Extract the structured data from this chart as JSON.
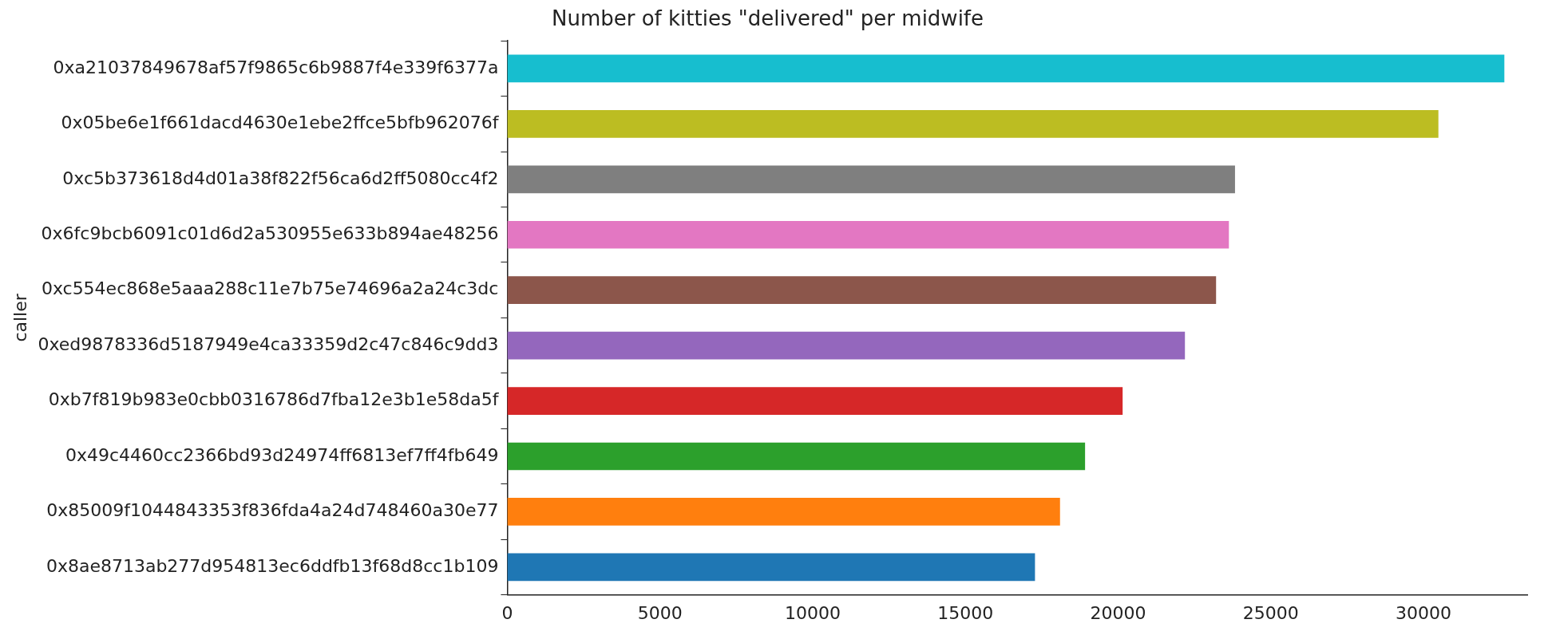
{
  "chart_data": {
    "type": "bar",
    "orientation": "horizontal",
    "title": "Number of kitties \"delivered\" per midwife",
    "ylabel": "caller",
    "categories": [
      "0xa21037849678af57f9865c6b9887f4e339f6377a",
      "0x05be6e1f661dacd4630e1ebe2ffce5bfb962076f",
      "0xc5b373618d4d01a38f822f56ca6d2ff5080cc4f2",
      "0x6fc9bcb6091c01d6d2a530955e633b894ae48256",
      "0xc554ec868e5aaa288c11e7b75e74696a2a24c3dc",
      "0xed9878336d5187949e4ca33359d2c47c846c9dd3",
      "0xb7f819b983e0cbb0316786d7fba12e3b1e58da5f",
      "0x49c4460cc2366bd93d24974ff6813ef7ff4fb649",
      "0x85009f1044843353f836fda4a24d748460a30e77",
      "0x8ae8713ab277d954813ec6ddfb13f68d8cc1b109"
    ],
    "values": [
      32650,
      30490,
      23830,
      23630,
      23210,
      22190,
      20150,
      18920,
      18100,
      17280
    ],
    "colors": [
      "#17becf",
      "#bcbd22",
      "#7f7f7f",
      "#e377c2",
      "#8c564b",
      "#9467bd",
      "#d62728",
      "#2ca02c",
      "#ff7f0e",
      "#1f77b4"
    ],
    "xlim": [
      0,
      33400
    ],
    "xticks": [
      0,
      5000,
      10000,
      15000,
      20000,
      25000,
      30000
    ],
    "grid": false,
    "legend": false
  }
}
